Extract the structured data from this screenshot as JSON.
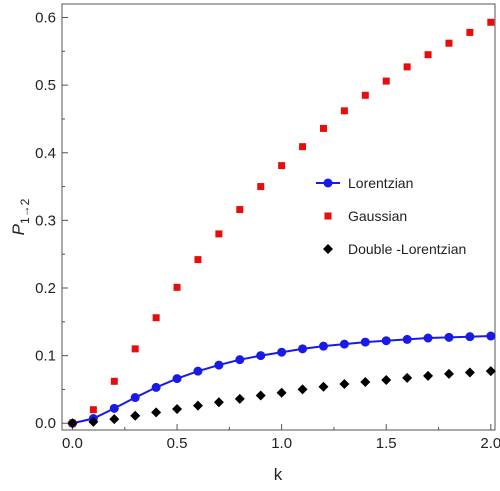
{
  "chart_data": {
    "type": "scatter",
    "title": "",
    "xlabel": "k",
    "ylabel": "P",
    "ylabel_subscript": "1→2",
    "xlim": [
      -0.05,
      2.02
    ],
    "ylim": [
      -0.01,
      0.62
    ],
    "xticks": [
      "0.0",
      "0.5",
      "1.0",
      "1.5",
      "2.0"
    ],
    "yticks": [
      "0.0",
      "0.1",
      "0.2",
      "0.3",
      "0.4",
      "0.5",
      "0.6"
    ],
    "grid": false,
    "legend_position": "right-center",
    "x": [
      0.0,
      0.1,
      0.2,
      0.3,
      0.4,
      0.5,
      0.6,
      0.7,
      0.8,
      0.9,
      1.0,
      1.1,
      1.2,
      1.3,
      1.4,
      1.5,
      1.6,
      1.7,
      1.8,
      1.9,
      2.0
    ],
    "series": [
      {
        "name": "Lorentzian",
        "color": "#1a1ae6",
        "marker": "circle",
        "line": true,
        "values": [
          0.0,
          0.007,
          0.022,
          0.038,
          0.053,
          0.066,
          0.077,
          0.086,
          0.094,
          0.1,
          0.105,
          0.11,
          0.114,
          0.117,
          0.12,
          0.122,
          0.124,
          0.126,
          0.127,
          0.128,
          0.129
        ]
      },
      {
        "name": "Gaussian",
        "color": "#e60d0d",
        "marker": "square",
        "line": false,
        "values": [
          0.0,
          0.02,
          0.062,
          0.11,
          0.156,
          0.201,
          0.242,
          0.28,
          0.316,
          0.35,
          0.381,
          0.409,
          0.436,
          0.462,
          0.485,
          0.506,
          0.527,
          0.545,
          0.562,
          0.578,
          0.593
        ]
      },
      {
        "name": "Double -Lorentzian",
        "color": "#000000",
        "marker": "diamond",
        "line": false,
        "values": [
          0.0,
          0.002,
          0.006,
          0.011,
          0.016,
          0.021,
          0.026,
          0.031,
          0.036,
          0.041,
          0.045,
          0.05,
          0.054,
          0.058,
          0.061,
          0.064,
          0.067,
          0.07,
          0.073,
          0.075,
          0.077
        ]
      }
    ]
  }
}
